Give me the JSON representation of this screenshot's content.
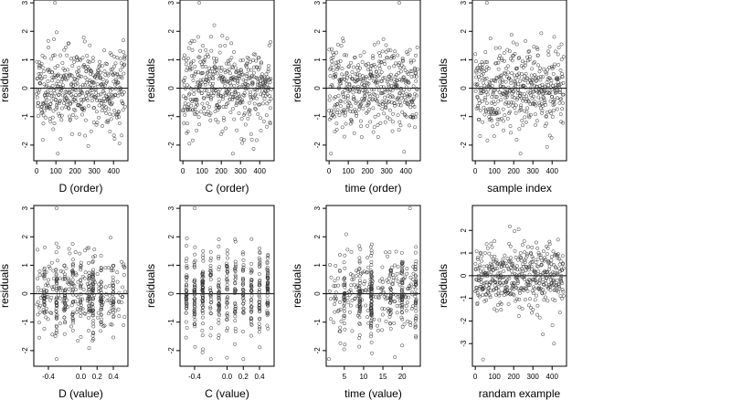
{
  "chart_data": [
    {
      "type": "scatter",
      "xlabel": "D (order)",
      "ylabel": "residuals",
      "xlim": [
        -15,
        475
      ],
      "ylim": [
        -2.55,
        3.1
      ],
      "xticks": [
        0,
        100,
        200,
        300,
        400
      ],
      "xtick_labels": [
        "0",
        "100",
        "200",
        "300",
        "400"
      ],
      "yticks": [
        -2,
        -1,
        0,
        1,
        2,
        3
      ],
      "ytick_labels": [
        "-2",
        "-1",
        "0",
        "1",
        "2",
        "3"
      ],
      "reference_line_y": 0,
      "n_points": 460,
      "x_kind": "index",
      "x_range": [
        0,
        460
      ],
      "seed": 11,
      "outliers": [
        [
          95,
          3.0
        ],
        [
          110,
          -2.3
        ]
      ]
    },
    {
      "type": "scatter",
      "xlabel": "C (order)",
      "ylabel": "residuals",
      "xlim": [
        -15,
        475
      ],
      "ylim": [
        -2.55,
        3.1
      ],
      "xticks": [
        0,
        100,
        200,
        300,
        400
      ],
      "xtick_labels": [
        "0",
        "100",
        "200",
        "300",
        "400"
      ],
      "yticks": [
        -2,
        -1,
        0,
        1,
        2,
        3
      ],
      "ytick_labels": [
        "-2",
        "-1",
        "0",
        "1",
        "2",
        "3"
      ],
      "reference_line_y": 0,
      "n_points": 460,
      "x_kind": "index",
      "x_range": [
        0,
        460
      ],
      "seed": 23,
      "outliers": [
        [
          85,
          3.0
        ],
        [
          260,
          -2.3
        ]
      ]
    },
    {
      "type": "scatter",
      "xlabel": "time (order)",
      "ylabel": "residuals",
      "xlim": [
        -15,
        475
      ],
      "ylim": [
        -2.55,
        3.1
      ],
      "xticks": [
        0,
        100,
        200,
        300,
        400
      ],
      "xtick_labels": [
        "0",
        "100",
        "200",
        "300",
        "400"
      ],
      "yticks": [
        -2,
        -1,
        0,
        1,
        2,
        3
      ],
      "ytick_labels": [
        "-2",
        "-1",
        "0",
        "1",
        "2",
        "3"
      ],
      "reference_line_y": 0,
      "n_points": 460,
      "x_kind": "index",
      "x_range": [
        0,
        460
      ],
      "seed": 37,
      "outliers": [
        [
          365,
          3.0
        ],
        [
          10,
          -2.3
        ]
      ]
    },
    {
      "type": "scatter",
      "xlabel": "sample index",
      "ylabel": "residuals",
      "xlim": [
        -15,
        475
      ],
      "ylim": [
        -2.55,
        3.1
      ],
      "xticks": [
        0,
        100,
        200,
        300,
        400
      ],
      "xtick_labels": [
        "0",
        "100",
        "200",
        "300",
        "400"
      ],
      "yticks": [
        -2,
        -1,
        0,
        1,
        2,
        3
      ],
      "ytick_labels": [
        "-2",
        "-1",
        "0",
        "1",
        "2",
        "3"
      ],
      "reference_line_y": 0,
      "n_points": 460,
      "x_kind": "index",
      "x_range": [
        0,
        460
      ],
      "seed": 41,
      "outliers": [
        [
          60,
          3.0
        ],
        [
          235,
          -2.3
        ]
      ]
    },
    {
      "type": "scatter",
      "xlabel": "D (value)",
      "ylabel": "residuals",
      "xlim": [
        -0.58,
        0.58
      ],
      "ylim": [
        -2.55,
        3.1
      ],
      "xticks": [
        -0.4,
        0.0,
        0.2,
        0.4
      ],
      "xtick_labels": [
        "-0.4",
        "0.0",
        "0.2",
        "0.4"
      ],
      "yticks": [
        -2,
        -1,
        0,
        1,
        2,
        3
      ],
      "ytick_labels": [
        "-2",
        "-1",
        "0",
        "1",
        "2",
        "3"
      ],
      "reference_line_y": 0,
      "n_points": 460,
      "x_kind": "mixed",
      "x_range": [
        -0.55,
        0.55
      ],
      "seed": 53,
      "x_clusters": [
        -0.45,
        -0.3,
        -0.2,
        -0.1,
        0.0,
        0.1,
        0.15,
        0.25,
        0.4
      ],
      "outliers": [
        [
          -0.3,
          3.0
        ],
        [
          -0.3,
          -2.3
        ]
      ]
    },
    {
      "type": "scatter",
      "xlabel": "C (value)",
      "ylabel": "residuals",
      "xlim": [
        -0.58,
        0.58
      ],
      "ylim": [
        -2.55,
        3.1
      ],
      "xticks": [
        -0.4,
        0.0,
        0.2,
        0.4
      ],
      "xtick_labels": [
        "-0.4",
        "0.0",
        "0.2",
        "0.4"
      ],
      "yticks": [
        -2,
        -1,
        0,
        1,
        2,
        3
      ],
      "ytick_labels": [
        "-2",
        "-1",
        "0",
        "1",
        "2",
        "3"
      ],
      "reference_line_y": 0,
      "n_points": 460,
      "x_kind": "columns",
      "x_range": [
        -0.55,
        0.55
      ],
      "seed": 67,
      "x_clusters": [
        -0.5,
        -0.4,
        -0.3,
        -0.2,
        -0.1,
        0.0,
        0.1,
        0.2,
        0.3,
        0.4,
        0.5
      ],
      "outliers": [
        [
          -0.4,
          3.0
        ],
        [
          0.2,
          -2.3
        ]
      ]
    },
    {
      "type": "scatter",
      "xlabel": "time (value)",
      "ylabel": "residuals",
      "xlim": [
        0.3,
        24.7
      ],
      "ylim": [
        -2.55,
        3.1
      ],
      "xticks": [
        5,
        10,
        15,
        20
      ],
      "xtick_labels": [
        "5",
        "10",
        "15",
        "20"
      ],
      "yticks": [
        -2,
        -1,
        0,
        1,
        2,
        3
      ],
      "ytick_labels": [
        "-2",
        "-1",
        "0",
        "1",
        "2",
        "3"
      ],
      "reference_line_y": 0,
      "n_points": 460,
      "x_kind": "mixed",
      "x_range": [
        1,
        24
      ],
      "seed": 71,
      "x_clusters": [
        12,
        12,
        23.5,
        5,
        9,
        17,
        20
      ],
      "outliers": [
        [
          22,
          3.0
        ],
        [
          1,
          -2.3
        ]
      ]
    },
    {
      "type": "scatter",
      "xlabel": "randam example",
      "ylabel": "residuals",
      "xlim": [
        -15,
        475
      ],
      "ylim": [
        -4.0,
        3.1
      ],
      "xticks": [
        0,
        100,
        200,
        300,
        400
      ],
      "xtick_labels": [
        "0",
        "100",
        "200",
        "300",
        "400"
      ],
      "yticks": [
        -3,
        -2,
        -1,
        0,
        1,
        2
      ],
      "ytick_labels": [
        "-3",
        "-2",
        "-1",
        "0",
        "1",
        "2"
      ],
      "reference_line_y": 0,
      "n_points": 460,
      "x_kind": "index",
      "x_range": [
        0,
        460
      ],
      "seed": 89,
      "outliers": [
        [
          40,
          -3.7
        ],
        [
          410,
          -3.0
        ]
      ]
    }
  ]
}
